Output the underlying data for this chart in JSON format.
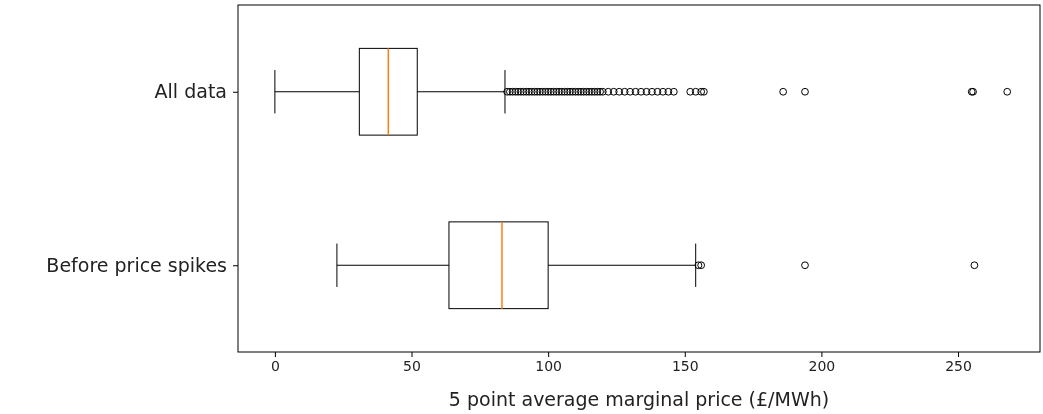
{
  "chart_data": {
    "type": "box",
    "orientation": "horizontal",
    "xlabel": "5 point average marginal price (£/MWh)",
    "categories": [
      "All data",
      "Before price spikes"
    ],
    "boxes": [
      {
        "low": 0,
        "q1": 30.9,
        "median": 41.5,
        "q3": 52.1,
        "high": 84.2,
        "outliers": [
          85,
          86,
          87,
          88,
          89,
          90,
          91,
          92,
          93,
          94,
          95,
          96,
          97,
          98,
          99,
          100,
          101,
          102,
          103,
          104,
          105,
          106,
          107,
          108,
          109,
          110,
          111,
          112,
          113,
          114,
          115,
          116,
          117,
          118,
          119,
          120,
          122,
          124,
          126,
          128,
          130,
          132,
          134,
          136,
          138,
          140,
          142,
          144,
          146,
          152,
          154,
          156,
          157,
          186,
          194,
          255,
          255.5,
          268
        ]
      },
      {
        "low": 22.7,
        "q1": 63.7,
        "median": 83.1,
        "q3": 100,
        "high": 154,
        "outliers": [
          155,
          156,
          194,
          256
        ]
      }
    ],
    "xlim": [
      -13.5,
      280
    ],
    "xticks": [
      0,
      50,
      100,
      150,
      200,
      250
    ],
    "marker": "circle",
    "grid": false
  }
}
